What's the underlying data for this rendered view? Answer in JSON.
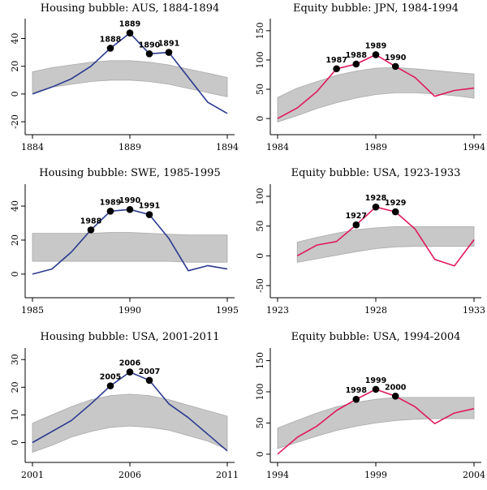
{
  "colors": {
    "housing_line": "#2b3a8f",
    "equity_line": "#e0185e",
    "band": "#c8c8c8",
    "band_edge": "#a9a9a9",
    "point": "#000000"
  },
  "chart_data": [
    {
      "type": "line",
      "title": "Housing bubble: AUS, 1884-1894",
      "line_color": "housing_line",
      "x": [
        1884,
        1885,
        1886,
        1887,
        1888,
        1889,
        1890,
        1891,
        1892,
        1893,
        1894
      ],
      "values": [
        0,
        5,
        11,
        20,
        33,
        44,
        29,
        30,
        12,
        -6,
        -14
      ],
      "band_upper": [
        16,
        19,
        21,
        23,
        24,
        24,
        23,
        21,
        18,
        15,
        12
      ],
      "band_lower": [
        1,
        5,
        7,
        9,
        10,
        10,
        9,
        7,
        4,
        1,
        -2
      ],
      "marked_points": [
        {
          "x": 1888,
          "y": 33,
          "label": "1888"
        },
        {
          "x": 1889,
          "y": 44,
          "label": "1889"
        },
        {
          "x": 1890,
          "y": 29,
          "label": "1890"
        },
        {
          "x": 1891,
          "y": 30,
          "label": "1891"
        }
      ],
      "xlim": [
        1884,
        1894
      ],
      "ylim": [
        -27,
        52
      ],
      "xticks": [
        "1884",
        "1889",
        "1894"
      ],
      "yticks": [
        "-20",
        "0",
        "20",
        "40"
      ]
    },
    {
      "type": "line",
      "title": "Equity bubble: JPN, 1984-1994",
      "line_color": "equity_line",
      "x": [
        1984,
        1985,
        1986,
        1987,
        1988,
        1989,
        1990,
        1991,
        1992,
        1993,
        1994
      ],
      "values": [
        0,
        18,
        46,
        85,
        93,
        109,
        89,
        70,
        38,
        48,
        52
      ],
      "band_upper": [
        36,
        52,
        63,
        74,
        81,
        86,
        87,
        85,
        82,
        79,
        76
      ],
      "band_lower": [
        -6,
        5,
        17,
        27,
        35,
        41,
        44,
        44,
        42,
        39,
        35
      ],
      "marked_points": [
        {
          "x": 1987,
          "y": 85,
          "label": "1987"
        },
        {
          "x": 1988,
          "y": 93,
          "label": "1988"
        },
        {
          "x": 1989,
          "y": 109,
          "label": "1989"
        },
        {
          "x": 1990,
          "y": 89,
          "label": "1990"
        }
      ],
      "xlim": [
        1984,
        1994
      ],
      "ylim": [
        -22,
        165
      ],
      "xticks": [
        "1984",
        "1989",
        "1994"
      ],
      "yticks": [
        "0",
        "50",
        "100",
        "150"
      ]
    },
    {
      "type": "line",
      "title": "Housing bubble: SWE, 1985-1995",
      "line_color": "housing_line",
      "x": [
        1985,
        1986,
        1987,
        1988,
        1989,
        1990,
        1991,
        1992,
        1993,
        1994,
        1995
      ],
      "values": [
        0,
        3,
        13,
        26,
        37,
        38,
        35,
        21,
        2,
        5,
        3
      ],
      "band_upper": [
        24,
        24,
        24,
        24,
        24.5,
        24.5,
        24,
        23.5,
        23,
        23,
        23
      ],
      "band_lower": [
        7.5,
        7.5,
        7.5,
        7.5,
        7.5,
        7.5,
        7.5,
        7.5,
        7,
        7,
        7
      ],
      "marked_points": [
        {
          "x": 1988,
          "y": 26,
          "label": "1988"
        },
        {
          "x": 1989,
          "y": 37,
          "label": "1989"
        },
        {
          "x": 1990,
          "y": 38,
          "label": "1990"
        },
        {
          "x": 1991,
          "y": 35,
          "label": "1991"
        }
      ],
      "xlim": [
        1985,
        1995
      ],
      "ylim": [
        -12,
        51
      ],
      "xticks": [
        "1985",
        "1990",
        "1995"
      ],
      "yticks": [
        "0",
        "20",
        "40"
      ]
    },
    {
      "type": "line",
      "title": "Equity bubble: USA, 1923-1933",
      "line_color": "equity_line",
      "x": [
        1924,
        1925,
        1926,
        1927,
        1928,
        1929,
        1930,
        1931,
        1932,
        1933
      ],
      "values": [
        0,
        18,
        24,
        52,
        82,
        74,
        45,
        -6,
        -17,
        27
      ],
      "band_upper": [
        23,
        31,
        38,
        44,
        47,
        49,
        49,
        49,
        49,
        49
      ],
      "band_lower": [
        -11,
        -5,
        1,
        7,
        12,
        15,
        16,
        16,
        16,
        16
      ],
      "marked_points": [
        {
          "x": 1927,
          "y": 52,
          "label": "1927"
        },
        {
          "x": 1928,
          "y": 82,
          "label": "1928"
        },
        {
          "x": 1929,
          "y": 74,
          "label": "1929"
        }
      ],
      "xlim": [
        1923,
        1933
      ],
      "ylim": [
        -65,
        115
      ],
      "xticks": [
        "1923",
        "1928",
        "1933"
      ],
      "yticks": [
        "-50",
        "0",
        "50",
        "100"
      ]
    },
    {
      "type": "line",
      "title": "Housing bubble: USA, 2001-2011",
      "line_color": "housing_line",
      "x": [
        2001,
        2002,
        2003,
        2004,
        2005,
        2006,
        2007,
        2008,
        2009,
        2010,
        2011
      ],
      "values": [
        0,
        4,
        8,
        14,
        20.5,
        25.5,
        22.5,
        14,
        9,
        3,
        -3
      ],
      "band_upper": [
        7,
        10,
        13,
        15.5,
        17,
        17.5,
        17,
        15.5,
        13.5,
        11.5,
        9.5
      ],
      "band_lower": [
        -3.5,
        -1,
        2,
        4,
        5.5,
        6,
        5.5,
        4.5,
        2.5,
        0.5,
        -2.5
      ],
      "marked_points": [
        {
          "x": 2005,
          "y": 20.5,
          "label": "2005"
        },
        {
          "x": 2006,
          "y": 25.5,
          "label": "2006"
        },
        {
          "x": 2007,
          "y": 22.5,
          "label": "2007"
        }
      ],
      "xlim": [
        2001,
        2011
      ],
      "ylim": [
        -6,
        33
      ],
      "xticks": [
        "2001",
        "2006",
        "2011"
      ],
      "yticks": [
        "0",
        "10",
        "20",
        "30"
      ]
    },
    {
      "type": "line",
      "title": "Equity bubble: USA, 1994-2004",
      "line_color": "equity_line",
      "x": [
        1994,
        1995,
        1996,
        1997,
        1998,
        1999,
        2000,
        2001,
        2002,
        2003,
        2004
      ],
      "values": [
        0,
        27,
        45,
        70,
        88,
        104,
        93,
        76,
        49,
        66,
        73
      ],
      "band_upper": [
        42,
        54,
        66,
        76,
        83,
        88,
        91,
        91,
        91,
        91,
        91
      ],
      "band_lower": [
        9,
        19,
        29,
        38,
        45,
        50,
        54,
        56,
        57,
        57,
        57
      ],
      "marked_points": [
        {
          "x": 1998,
          "y": 88,
          "label": "1998"
        },
        {
          "x": 1999,
          "y": 104,
          "label": "1999"
        },
        {
          "x": 2000,
          "y": 93,
          "label": "2000"
        }
      ],
      "xlim": [
        1994,
        2004
      ],
      "ylim": [
        -8,
        165
      ],
      "xticks": [
        "1994",
        "1999",
        "2004"
      ],
      "yticks": [
        "0",
        "50",
        "100",
        "150"
      ]
    }
  ]
}
